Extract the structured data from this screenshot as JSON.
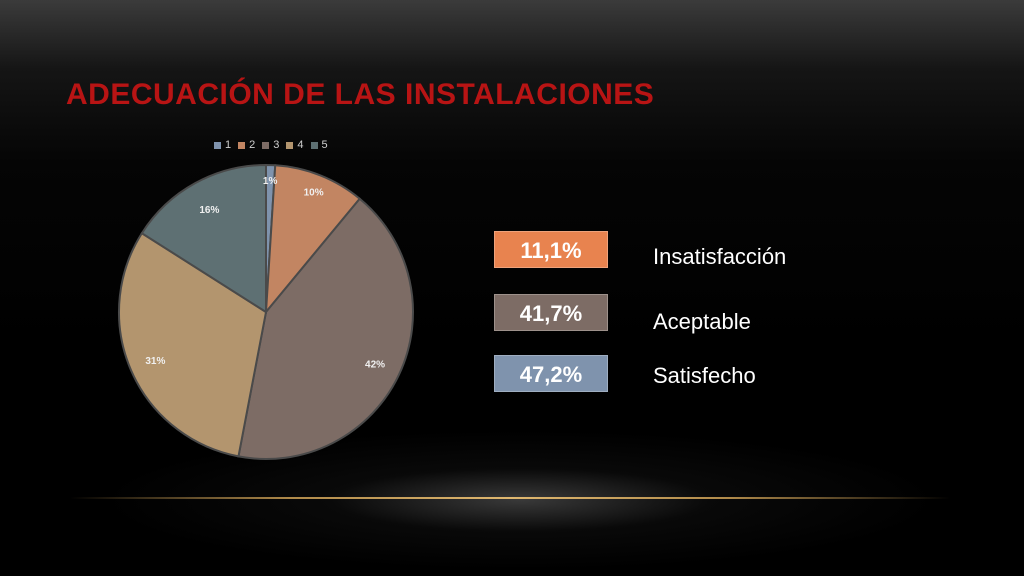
{
  "slide": {
    "title": "ADECUACIÓN DE LAS INSTALACIONES"
  },
  "chart_data": {
    "type": "pie",
    "categories": [
      "1",
      "2",
      "3",
      "4",
      "5"
    ],
    "values": [
      1,
      10,
      42,
      31,
      16
    ],
    "labels": [
      "1%",
      "10%",
      "42%",
      "31%",
      "16%"
    ],
    "colors": [
      "#7f93ad",
      "#c28562",
      "#7d6c65",
      "#b3956e",
      "#5e7073"
    ],
    "legend_position": "top"
  },
  "summary": [
    {
      "value": "11,1%",
      "label": "Insatisfacción",
      "color": "#e8834f"
    },
    {
      "value": "41,7%",
      "label": "Aceptable",
      "color": "#7d6c65"
    },
    {
      "value": "47,2%",
      "label": "Satisfecho",
      "color": "#7f93ad"
    }
  ]
}
